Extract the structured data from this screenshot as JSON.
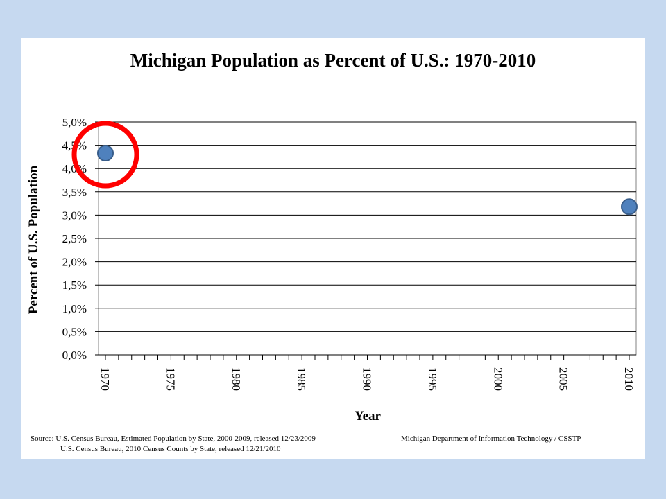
{
  "colors": {
    "background": "#c6d9f0",
    "panel": "#ffffff",
    "marker_fill": "#4f81bd",
    "marker_stroke": "#385d8a",
    "highlight_circle": "#ff0000"
  },
  "chart_data": {
    "type": "scatter",
    "title": "Michigan Population as Percent of U.S.: 1970-2010",
    "xlabel": "Year",
    "ylabel": "Percent of U.S. Population",
    "xlim": [
      1970,
      2010
    ],
    "ylim": [
      0,
      5.0
    ],
    "x_ticks": [
      "1970",
      "1975",
      "1980",
      "1985",
      "1990",
      "1995",
      "2000",
      "2005",
      "2010"
    ],
    "y_ticks": [
      "0,0%",
      "0,5%",
      "1,0%",
      "1,5%",
      "2,0%",
      "2,5%",
      "3,0%",
      "3,5%",
      "4,0%",
      "4,5%",
      "5,0%"
    ],
    "grid": "horizontal",
    "series": [
      {
        "points": [
          {
            "x": 1970,
            "y": 4.33
          },
          {
            "x": 2010,
            "y": 3.18
          }
        ]
      }
    ],
    "annotations": [
      {
        "type": "circle",
        "around_point": {
          "x": 1970,
          "y": 4.33
        }
      }
    ]
  },
  "source": {
    "line1": "Source:  U.S.  Census Bureau, Estimated Population by State, 2000-2009, released 12/23/2009",
    "line2": "U.S.  Census Bureau, 2010 Census  Counts by State, released 12/21/2010",
    "credit": "Michigan Department of Information Technology / CSSTP"
  }
}
